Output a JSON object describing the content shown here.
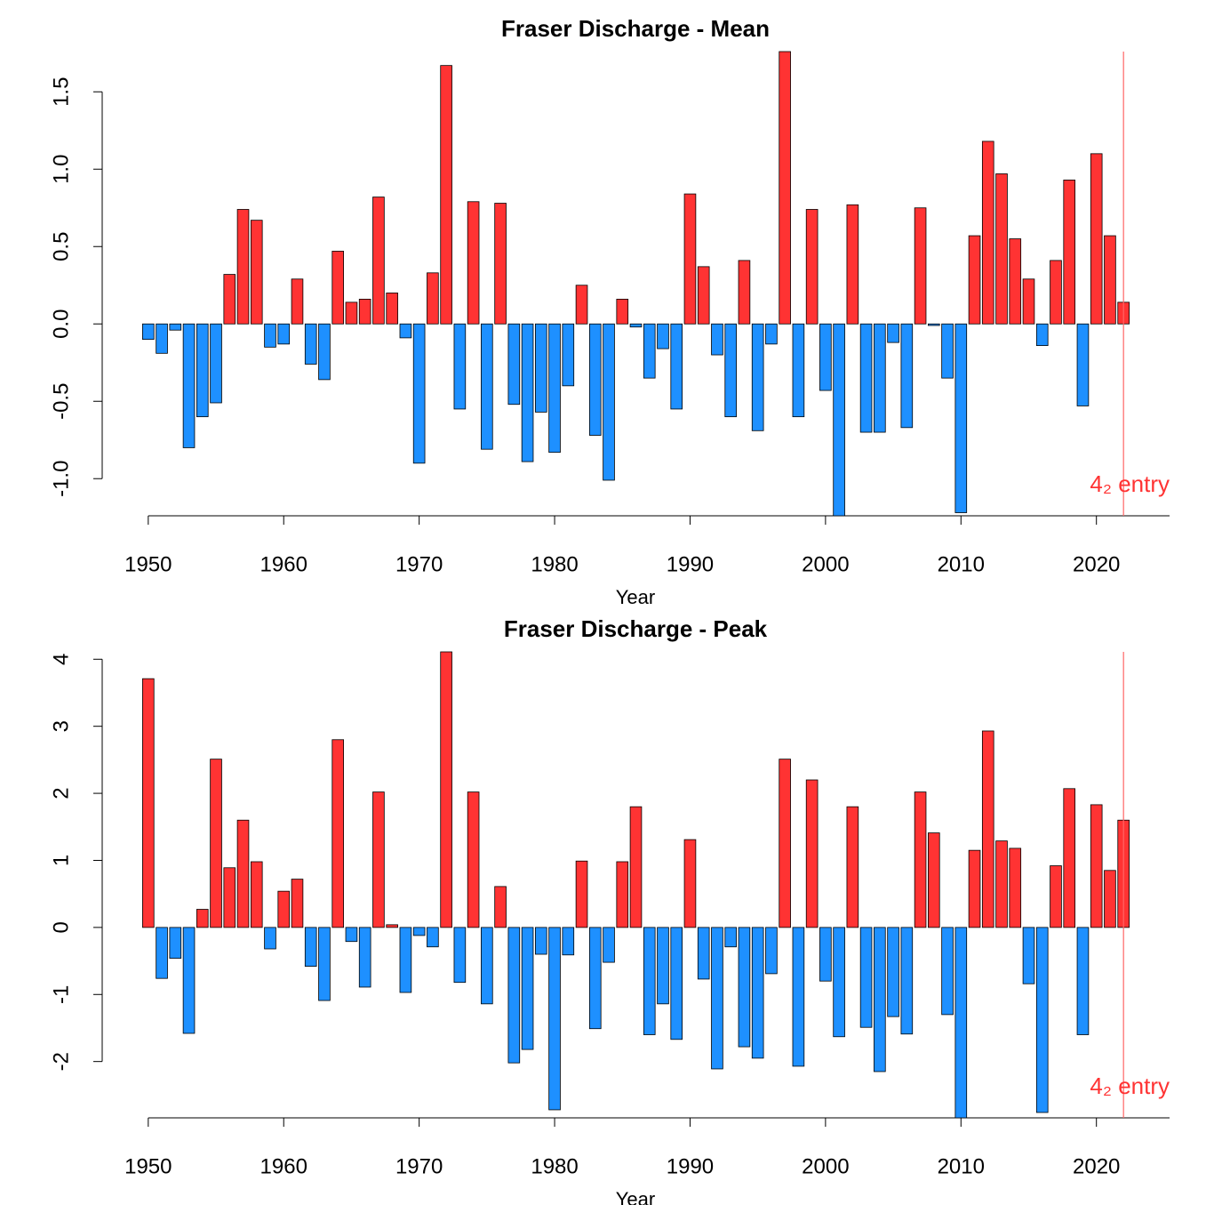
{
  "chart_data": [
    {
      "type": "bar",
      "title": "Fraser Discharge - Mean",
      "x_label": "Year",
      "x": [
        1950,
        1951,
        1952,
        1953,
        1954,
        1955,
        1956,
        1957,
        1958,
        1959,
        1960,
        1961,
        1962,
        1963,
        1964,
        1965,
        1966,
        1967,
        1968,
        1969,
        1970,
        1971,
        1972,
        1973,
        1974,
        1975,
        1976,
        1977,
        1978,
        1979,
        1980,
        1981,
        1982,
        1983,
        1984,
        1985,
        1986,
        1987,
        1988,
        1989,
        1990,
        1991,
        1992,
        1993,
        1994,
        1995,
        1996,
        1997,
        1998,
        1999,
        2000,
        2001,
        2002,
        2003,
        2004,
        2005,
        2006,
        2007,
        2008,
        2009,
        2010,
        2011,
        2012,
        2013,
        2014,
        2015,
        2016,
        2017,
        2018,
        2019,
        2020,
        2021,
        2022
      ],
      "values": [
        -0.1,
        -0.19,
        -0.04,
        -0.8,
        -0.6,
        -0.51,
        0.32,
        0.74,
        0.67,
        -0.15,
        -0.13,
        0.29,
        -0.26,
        -0.36,
        0.47,
        0.14,
        0.16,
        0.82,
        0.2,
        -0.09,
        -0.9,
        0.33,
        1.67,
        -0.55,
        0.79,
        -0.81,
        0.78,
        -0.52,
        -0.89,
        -0.57,
        -0.83,
        -0.4,
        0.25,
        -0.72,
        -1.01,
        0.16,
        -0.02,
        -0.35,
        -0.16,
        -0.55,
        0.84,
        0.37,
        -0.2,
        -0.6,
        0.41,
        -0.69,
        -0.13,
        1.76,
        -0.6,
        0.74,
        -0.43,
        -1.24,
        0.77,
        -0.7,
        -0.7,
        -0.12,
        -0.67,
        0.75,
        -0.01,
        -0.35,
        -1.22,
        0.57,
        1.18,
        0.97,
        0.55,
        0.29,
        -0.14,
        0.41,
        0.93,
        -0.53,
        1.1,
        0.57,
        0.14
      ],
      "positive_color": "#ff3333",
      "negative_color": "#1e90ff",
      "xlim": [
        1946.6,
        2025.4
      ],
      "xticks": [
        1950,
        1960,
        1970,
        1980,
        1990,
        2000,
        2010,
        2020
      ],
      "ylim": [
        -1.24,
        1.76
      ],
      "yticks": [
        {
          "value": -1,
          "label": "-1.0"
        },
        -0.5,
        {
          "value": 0,
          "label": "0.0"
        },
        0.5,
        {
          "value": 1,
          "label": "1.0"
        },
        1.5
      ],
      "vline": 2022,
      "vline_color": "#ff6666",
      "annotation": "4₂ entry"
    },
    {
      "type": "bar",
      "title": "Fraser Discharge - Peak",
      "x_label": "Year",
      "x": [
        1950,
        1951,
        1952,
        1953,
        1954,
        1955,
        1956,
        1957,
        1958,
        1959,
        1960,
        1961,
        1962,
        1963,
        1964,
        1965,
        1966,
        1967,
        1968,
        1969,
        1970,
        1971,
        1972,
        1973,
        1974,
        1975,
        1976,
        1977,
        1978,
        1979,
        1980,
        1981,
        1982,
        1983,
        1984,
        1985,
        1986,
        1987,
        1988,
        1989,
        1990,
        1991,
        1992,
        1993,
        1994,
        1995,
        1996,
        1997,
        1998,
        1999,
        2000,
        2001,
        2002,
        2003,
        2004,
        2005,
        2006,
        2007,
        2008,
        2009,
        2010,
        2011,
        2012,
        2013,
        2014,
        2015,
        2016,
        2017,
        2018,
        2019,
        2020,
        2021,
        2022
      ],
      "values": [
        3.71,
        -0.76,
        -0.46,
        -1.58,
        0.27,
        2.51,
        0.89,
        1.6,
        0.98,
        -0.32,
        0.54,
        0.72,
        -0.58,
        -1.09,
        2.8,
        -0.21,
        -0.89,
        2.02,
        0.04,
        -0.97,
        -0.12,
        -0.29,
        4.11,
        -0.82,
        2.02,
        -1.14,
        0.61,
        -2.02,
        -1.82,
        -0.4,
        -2.72,
        -0.41,
        0.99,
        -1.51,
        -0.52,
        0.98,
        1.8,
        -1.6,
        -1.14,
        -1.67,
        1.31,
        -0.77,
        -2.11,
        -0.29,
        -1.78,
        -1.95,
        -0.69,
        2.51,
        -2.07,
        2.2,
        -0.8,
        -1.63,
        1.8,
        -1.49,
        -2.15,
        -1.33,
        -1.59,
        2.02,
        1.41,
        -1.3,
        -2.84,
        1.15,
        2.93,
        1.29,
        1.18,
        -0.84,
        -2.76,
        0.92,
        2.07,
        -1.6,
        1.83,
        0.85,
        1.6
      ],
      "positive_color": "#ff3333",
      "negative_color": "#1e90ff",
      "xlim": [
        1946.6,
        2025.4
      ],
      "xticks": [
        1950,
        1960,
        1970,
        1980,
        1990,
        2000,
        2010,
        2020
      ],
      "ylim": [
        -2.84,
        4.11
      ],
      "yticks": [
        -2,
        -1,
        0,
        1,
        2,
        3,
        4
      ],
      "vline": 2022,
      "vline_color": "#ff6666",
      "annotation": "4₂ entry"
    }
  ]
}
